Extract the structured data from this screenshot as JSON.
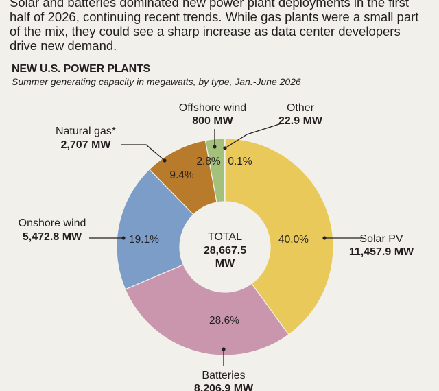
{
  "intro": "Solar and batteries dominated new power plant deployments in the first half of 2026, continuing recent trends. While gas plants were a small part of the mix, they could see a sharp increase as data center developers drive new demand.",
  "chart_data": {
    "type": "pie",
    "title": "NEW U.S. POWER PLANTS",
    "subtitle": "Summer generating capacity in megawatts, by type, Jan.-June 2026",
    "total_label": [
      "TOTAL",
      "28,667.5",
      "MW"
    ],
    "slices": [
      {
        "name": "Solar PV",
        "value_label": "11,457.9 MW",
        "percent": 40.0,
        "percent_label": "40.0%",
        "color": "#e9c95a"
      },
      {
        "name": "Batteries",
        "value_label": "8,206.9 MW",
        "percent": 28.6,
        "percent_label": "28.6%",
        "color": "#c996ad"
      },
      {
        "name": "Onshore wind",
        "value_label": "5,472.8 MW",
        "percent": 19.1,
        "percent_label": "19.1%",
        "color": "#7b9dc8"
      },
      {
        "name": "Natural gas*",
        "value_label": "2,707 MW",
        "percent": 9.4,
        "percent_label": "9.4%",
        "color": "#b87a2b"
      },
      {
        "name": "Offshore wind",
        "value_label": "800 MW",
        "percent": 2.8,
        "percent_label": "2.8%",
        "color": "#a4c17c"
      },
      {
        "name": "Other",
        "value_label": "22.9 MW",
        "percent": 0.1,
        "percent_label": "0.1%",
        "color": "#4e8a5a"
      }
    ]
  }
}
